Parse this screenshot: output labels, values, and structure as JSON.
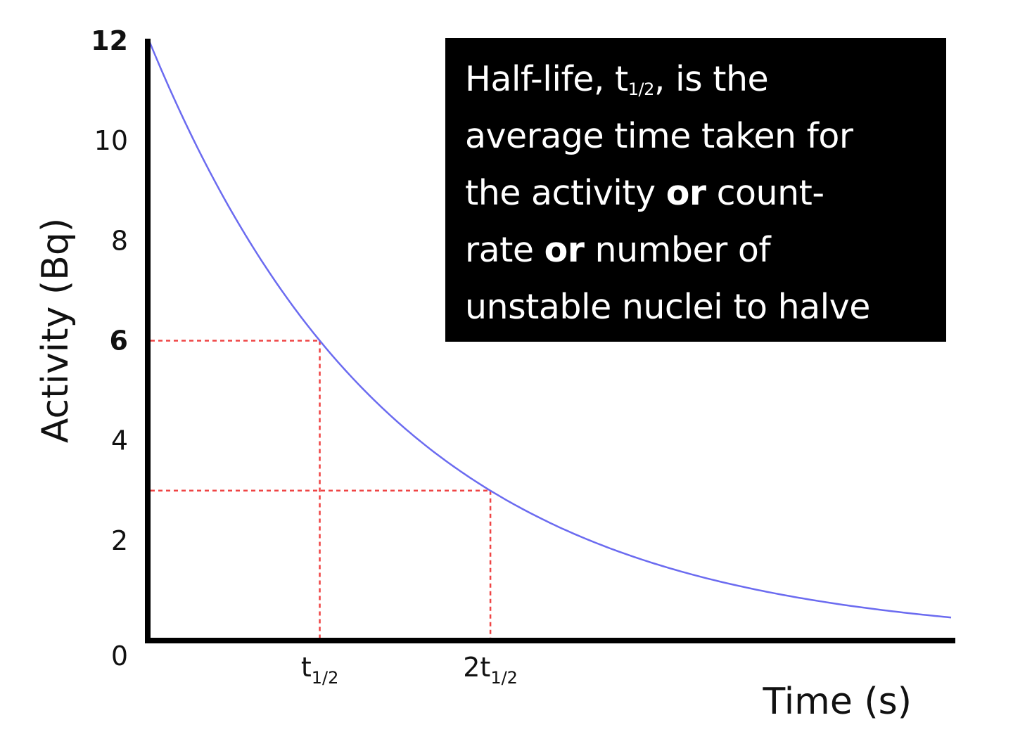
{
  "chart_data": {
    "type": "line",
    "xlabel": "Time (s)",
    "ylabel": "Activity (Bq)",
    "ylim": [
      0,
      12
    ],
    "y_ticks": [
      {
        "value": 0,
        "label": "0",
        "bold": false
      },
      {
        "value": 2,
        "label": "2",
        "bold": false
      },
      {
        "value": 4,
        "label": "4",
        "bold": false
      },
      {
        "value": 6,
        "label": "6",
        "bold": true
      },
      {
        "value": 8,
        "label": "8",
        "bold": false
      },
      {
        "value": 10,
        "label": "10",
        "bold": false
      },
      {
        "value": 12,
        "label": "12",
        "bold": true
      }
    ],
    "x_unit": "half-lives",
    "xlim": [
      0,
      4.7
    ],
    "x_ticks": [
      {
        "value": 1,
        "prefix": "",
        "main": "t",
        "sub": "1/2"
      },
      {
        "value": 2,
        "prefix": "2",
        "main": "t",
        "sub": "1/2"
      }
    ],
    "series": [
      {
        "initial_value": 12,
        "decay": "halves every half-life",
        "color": "#6b6bf0"
      }
    ],
    "reference_lines": [
      {
        "x": 1,
        "y": 6
      },
      {
        "x": 2,
        "y": 3
      }
    ],
    "reference_color": "#ef4444",
    "grid": false,
    "legend": "none"
  },
  "info_box": {
    "line1_a": "Half-life, t",
    "line1_sub": "1/2",
    "line1_b": ", is the",
    "line2": "average time taken for",
    "line3_a": "the activity ",
    "line3_bold": "or",
    "line3_b": " count-",
    "line4_a": "rate ",
    "line4_bold": "or",
    "line4_b": " number of",
    "line5": "unstable nuclei to halve",
    "background": "#000000",
    "text_color": "#ffffff"
  }
}
